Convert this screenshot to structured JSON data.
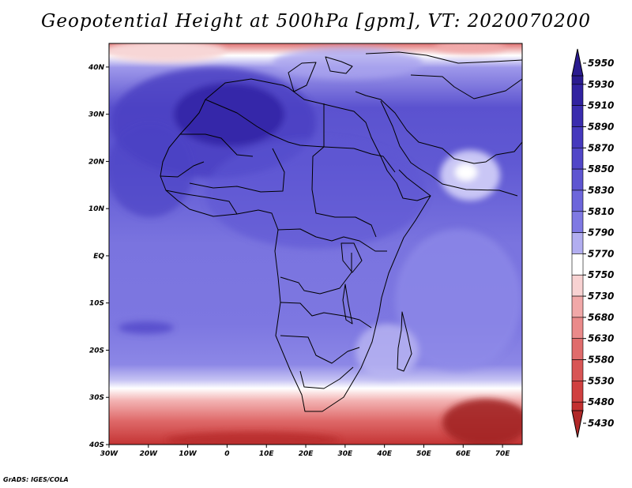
{
  "title": "Geopotential Height at 500hPa [gpm], VT: 2020070200",
  "credit": "GrADS: IGES/COLA",
  "map": {
    "lon_range": [
      -30,
      75
    ],
    "lat_range": [
      -40,
      45
    ],
    "field": "500hPa geopotential height",
    "overlay": "coastlines and country borders",
    "lon_ticks": [
      {
        "lon": -30,
        "label": "30W"
      },
      {
        "lon": -20,
        "label": "20W"
      },
      {
        "lon": -10,
        "label": "10W"
      },
      {
        "lon": 0,
        "label": "0"
      },
      {
        "lon": 10,
        "label": "10E"
      },
      {
        "lon": 20,
        "label": "20E"
      },
      {
        "lon": 30,
        "label": "30E"
      },
      {
        "lon": 40,
        "label": "40E"
      },
      {
        "lon": 50,
        "label": "50E"
      },
      {
        "lon": 60,
        "label": "60E"
      },
      {
        "lon": 70,
        "label": "70E"
      }
    ],
    "lat_ticks": [
      {
        "lat": 40,
        "label": "40N"
      },
      {
        "lat": 30,
        "label": "30N"
      },
      {
        "lat": 20,
        "label": "20N"
      },
      {
        "lat": 10,
        "label": "10N"
      },
      {
        "lat": 0,
        "label": "EQ"
      },
      {
        "lat": -10,
        "label": "10S"
      },
      {
        "lat": -20,
        "label": "20S"
      },
      {
        "lat": -30,
        "label": "30S"
      },
      {
        "lat": -40,
        "label": "40S"
      }
    ]
  },
  "colorbar": {
    "levels": [
      {
        "value": "5950",
        "color": "#2a1b8f"
      },
      {
        "value": "5930",
        "color": "#3122a0"
      },
      {
        "value": "5910",
        "color": "#3a2cae"
      },
      {
        "value": "5890",
        "color": "#4538bd"
      },
      {
        "value": "5870",
        "color": "#5146c8"
      },
      {
        "value": "5850",
        "color": "#5e55d1"
      },
      {
        "value": "5830",
        "color": "#6d66db"
      },
      {
        "value": "5810",
        "color": "#7f79e3"
      },
      {
        "value": "5790",
        "color": "#b2aef0"
      },
      {
        "value": "5770",
        "color": "#ffffff"
      },
      {
        "value": "5750",
        "color": "#f8d2d2"
      },
      {
        "value": "5730",
        "color": "#f1a8a8"
      },
      {
        "value": "5680",
        "color": "#ea8a8a"
      },
      {
        "value": "5630",
        "color": "#e06c6c"
      },
      {
        "value": "5580",
        "color": "#d85555"
      },
      {
        "value": "5530",
        "color": "#d04040"
      },
      {
        "value": "5480",
        "color": "#c33030"
      },
      {
        "value": "5430",
        "color": "#b02828"
      }
    ]
  }
}
